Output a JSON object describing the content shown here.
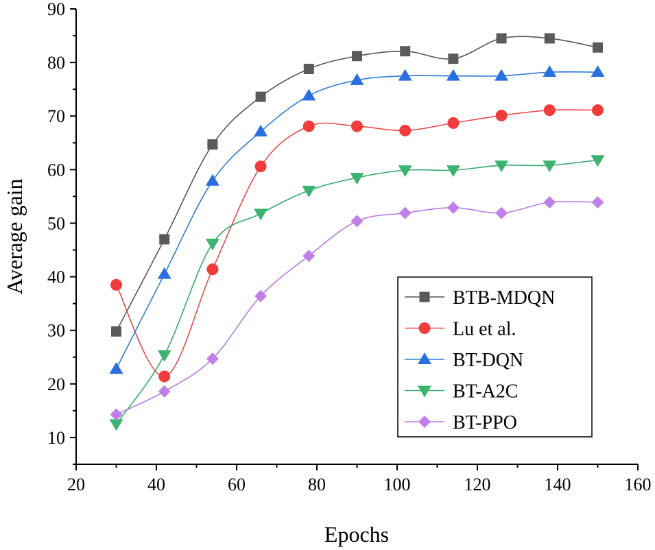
{
  "chart_data": {
    "type": "line",
    "title": "",
    "xlabel": "Epochs",
    "ylabel": "Average gain",
    "xlim": [
      20,
      160
    ],
    "ylim": [
      5,
      90
    ],
    "xticks": [
      20,
      40,
      60,
      80,
      100,
      120,
      140,
      160
    ],
    "yticks": [
      10,
      20,
      30,
      40,
      50,
      60,
      70,
      80,
      90
    ],
    "grid": false,
    "legend_position": "bottom-right",
    "x": [
      30,
      42,
      54,
      66,
      78,
      90,
      102,
      114,
      126,
      138,
      150
    ],
    "series": [
      {
        "name": "BTB-MDQN",
        "marker": "square",
        "line_color": "#555555",
        "marker_color": "#5a5a5a",
        "values": [
          29.8,
          47.0,
          64.7,
          73.6,
          78.8,
          81.2,
          82.1,
          80.7,
          84.5,
          84.5,
          82.8
        ]
      },
      {
        "name": "Lu et al.",
        "marker": "circle",
        "line_color": "#e84a4a",
        "marker_color": "#f03c3c",
        "values": [
          38.5,
          21.4,
          41.4,
          60.6,
          68.1,
          68.1,
          67.3,
          68.7,
          70.1,
          71.1,
          71.1
        ]
      },
      {
        "name": "BT-DQN",
        "marker": "triangle-up",
        "line_color": "#2f7ad6",
        "marker_color": "#2a6fe0",
        "values": [
          22.8,
          40.5,
          57.9,
          67.1,
          73.8,
          76.7,
          77.5,
          77.5,
          77.5,
          78.2,
          78.2
        ]
      },
      {
        "name": "BT-A2C",
        "marker": "triangle-down",
        "line_color": "#33a86b",
        "marker_color": "#3cb371",
        "values": [
          12.5,
          25.4,
          46.2,
          51.8,
          56.1,
          58.5,
          59.9,
          59.9,
          60.8,
          60.8,
          61.8
        ]
      },
      {
        "name": "BT-PPO",
        "marker": "diamond",
        "line_color": "#b97be0",
        "marker_color": "#bf80e8",
        "values": [
          14.3,
          18.6,
          24.7,
          36.4,
          43.9,
          50.4,
          51.9,
          52.9,
          51.9,
          53.9,
          53.9
        ]
      }
    ]
  }
}
